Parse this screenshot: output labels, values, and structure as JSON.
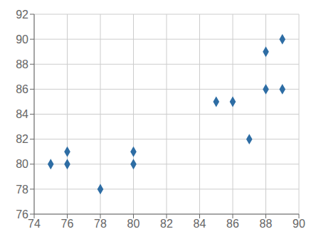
{
  "chart_data": {
    "type": "scatter",
    "x": [
      75,
      76,
      76,
      78,
      80,
      80,
      85,
      86,
      87,
      88,
      88,
      89,
      89
    ],
    "values": [
      80,
      80,
      81,
      78,
      80,
      81,
      85,
      85,
      82,
      86,
      89,
      86,
      90
    ],
    "xlim": [
      74,
      90
    ],
    "ylim": [
      76,
      92
    ],
    "xticks": [
      74,
      76,
      78,
      80,
      82,
      84,
      86,
      88,
      90
    ],
    "yticks": [
      76,
      78,
      80,
      82,
      84,
      86,
      88,
      90,
      92
    ],
    "color": "#2E6DA4",
    "marker": "diamond",
    "grid": true
  }
}
